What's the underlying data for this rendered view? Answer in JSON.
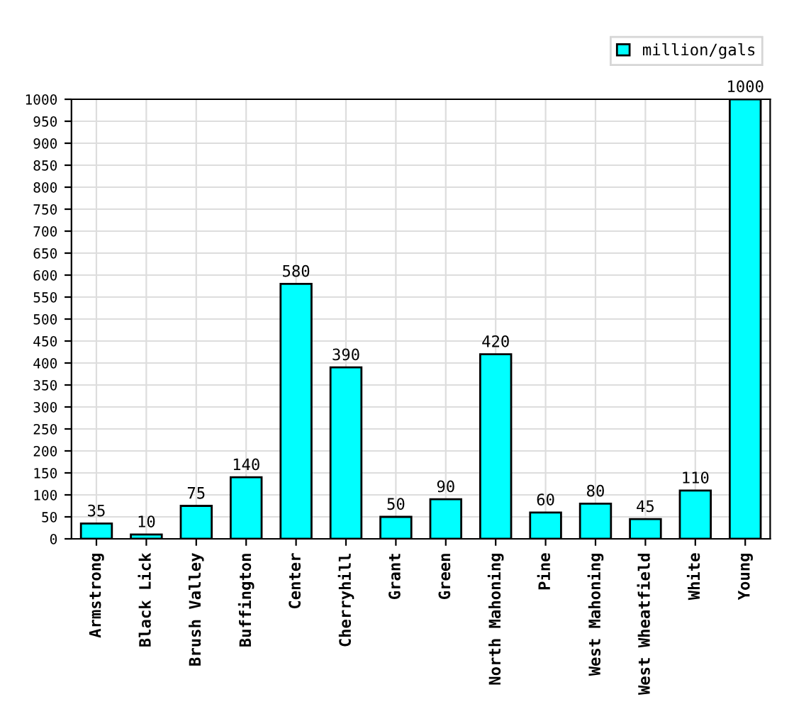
{
  "chart_data": {
    "type": "bar",
    "categories": [
      "Armstrong",
      "Black Lick",
      "Brush Valley",
      "Buffington",
      "Center",
      "Cherryhill",
      "Grant",
      "Green",
      "North Mahoning",
      "Pine",
      "West Mahoning",
      "West Wheatfield",
      "White",
      "Young"
    ],
    "series": [
      {
        "name": "million/gals",
        "color": "#00ffff",
        "values": [
          35,
          10,
          75,
          140,
          580,
          390,
          50,
          90,
          420,
          60,
          80,
          45,
          110,
          1000
        ]
      }
    ],
    "ylim": [
      0,
      1000
    ],
    "yticks": [
      0,
      50,
      100,
      150,
      200,
      250,
      300,
      350,
      400,
      450,
      500,
      550,
      600,
      650,
      700,
      750,
      800,
      850,
      900,
      950,
      1000
    ],
    "data_labels": true,
    "grid": true,
    "legend": "top right"
  }
}
